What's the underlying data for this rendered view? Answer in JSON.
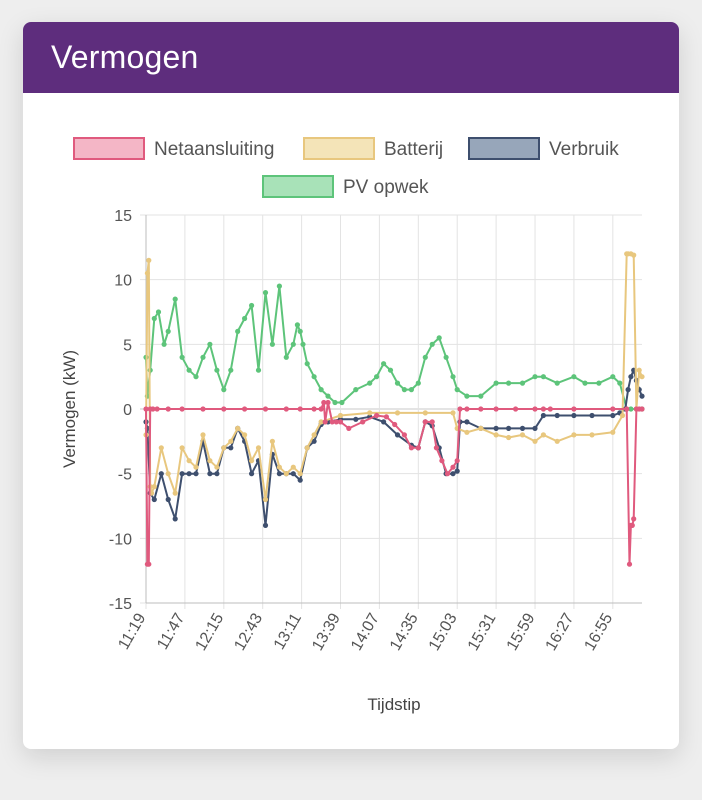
{
  "card": {
    "title": "Vermogen"
  },
  "chart_data": {
    "type": "line",
    "xlabel": "Tijdstip",
    "ylabel": "Vermogen (kW)",
    "ylim": [
      -15,
      15
    ],
    "yticks": [
      15,
      10,
      5,
      0,
      -5,
      -10,
      -15
    ],
    "xlim": [
      "11:19",
      "17:16"
    ],
    "xticks": [
      "11:19",
      "11:47",
      "12:15",
      "12:43",
      "13:11",
      "13:39",
      "14:07",
      "14:35",
      "15:03",
      "15:31",
      "15:59",
      "16:27",
      "16:55"
    ],
    "grid": true,
    "legend_position": "top",
    "series": [
      {
        "name": "Netaansluiting",
        "color": "#e05a7e",
        "fill": "#f4b6c6",
        "x": [
          "11:19",
          "11:20",
          "11:21",
          "11:22",
          "11:24",
          "11:27",
          "11:35",
          "11:45",
          "12:00",
          "12:15",
          "12:30",
          "12:45",
          "13:00",
          "13:10",
          "13:20",
          "13:25",
          "13:27",
          "13:28",
          "13:30",
          "13:33",
          "13:36",
          "13:39",
          "13:45",
          "13:55",
          "14:05",
          "14:12",
          "14:18",
          "14:25",
          "14:30",
          "14:35",
          "14:40",
          "14:45",
          "14:48",
          "14:52",
          "14:56",
          "15:00",
          "15:03",
          "15:05",
          "15:10",
          "15:20",
          "15:31",
          "15:45",
          "15:59",
          "16:05",
          "16:10",
          "16:27",
          "16:55",
          "17:05",
          "17:07",
          "17:08",
          "17:09",
          "17:10",
          "17:12",
          "17:14",
          "17:16"
        ],
        "values": [
          0,
          -12,
          -12,
          0,
          0,
          0,
          0,
          0,
          0,
          0,
          0,
          0,
          0,
          0,
          0,
          0,
          0.5,
          -1,
          0.5,
          -1,
          -1,
          -1,
          -1.5,
          -1,
          -0.5,
          -0.6,
          -1.2,
          -2,
          -3,
          -3,
          -1,
          -1,
          -3,
          -4,
          -5,
          -4.5,
          -4,
          0,
          0,
          0,
          0,
          0,
          0,
          0,
          0,
          0,
          0,
          0,
          -12,
          -9,
          -9,
          -8.5,
          0,
          0,
          0
        ]
      },
      {
        "name": "Batterij",
        "color": "#e8c77e",
        "fill": "#f4e4b8",
        "x": [
          "11:19",
          "11:20",
          "11:21",
          "11:22",
          "11:23",
          "11:25",
          "11:30",
          "11:35",
          "11:40",
          "11:45",
          "11:50",
          "11:55",
          "12:00",
          "12:05",
          "12:10",
          "12:15",
          "12:20",
          "12:25",
          "12:30",
          "12:35",
          "12:40",
          "12:45",
          "12:50",
          "12:55",
          "13:00",
          "13:05",
          "13:10",
          "13:15",
          "13:20",
          "13:25",
          "13:39",
          "14:00",
          "14:20",
          "14:40",
          "15:00",
          "15:03",
          "15:10",
          "15:20",
          "15:31",
          "15:40",
          "15:50",
          "15:59",
          "16:05",
          "16:15",
          "16:27",
          "16:40",
          "16:55",
          "17:02",
          "17:05",
          "17:06",
          "17:08",
          "17:10",
          "17:12",
          "17:14",
          "17:16"
        ],
        "values": [
          -2,
          10.5,
          11.5,
          -6,
          -6.5,
          -6,
          -3,
          -5,
          -6.5,
          -3,
          -4,
          -4.5,
          -2,
          -4,
          -4.5,
          -3,
          -2.5,
          -1.5,
          -2,
          -4,
          -3,
          -7,
          -2.5,
          -4.5,
          -5,
          -4.5,
          -5,
          -3,
          -2,
          -1,
          -0.5,
          -0.3,
          -0.3,
          -0.3,
          -0.3,
          -1.5,
          -1.8,
          -1.5,
          -2,
          -2.2,
          -2,
          -2.5,
          -2,
          -2.5,
          -2,
          -2,
          -1.8,
          -0.5,
          12,
          12,
          12,
          11.9,
          0,
          3,
          2.5
        ]
      },
      {
        "name": "Verbruik",
        "color": "#3e4f6e",
        "fill": "#97a6ba",
        "x": [
          "11:19",
          "11:20",
          "11:22",
          "11:25",
          "11:30",
          "11:35",
          "11:40",
          "11:45",
          "11:50",
          "11:55",
          "12:00",
          "12:05",
          "12:10",
          "12:15",
          "12:20",
          "12:25",
          "12:30",
          "12:35",
          "12:40",
          "12:45",
          "12:50",
          "12:55",
          "13:00",
          "13:05",
          "13:10",
          "13:15",
          "13:20",
          "13:25",
          "13:30",
          "13:39",
          "13:50",
          "14:00",
          "14:10",
          "14:20",
          "14:30",
          "14:35",
          "14:40",
          "14:45",
          "14:50",
          "14:55",
          "15:00",
          "15:03",
          "15:05",
          "15:10",
          "15:20",
          "15:31",
          "15:40",
          "15:50",
          "15:59",
          "16:05",
          "16:15",
          "16:27",
          "16:40",
          "16:55",
          "17:00",
          "17:04",
          "17:06",
          "17:08",
          "17:10",
          "17:12",
          "17:14",
          "17:16"
        ],
        "values": [
          -1,
          -1.5,
          -6.5,
          -7,
          -5,
          -7,
          -8.5,
          -5,
          -5,
          -5,
          -2.5,
          -5,
          -5,
          -3,
          -3,
          -1.5,
          -2.5,
          -5,
          -4,
          -9,
          -3.5,
          -5,
          -5,
          -5,
          -5.5,
          -3,
          -2.5,
          -1.2,
          -1,
          -0.8,
          -0.8,
          -0.6,
          -1,
          -2,
          -2.8,
          -3,
          -1,
          -1.3,
          -3,
          -5,
          -5,
          -4.8,
          -1,
          -1,
          -1.5,
          -1.5,
          -1.5,
          -1.5,
          -1.5,
          -0.5,
          -0.5,
          -0.5,
          -0.5,
          -0.5,
          -0.3,
          0,
          1.5,
          2.5,
          3,
          2.2,
          1.5,
          1
        ]
      },
      {
        "name": "PV opwek",
        "color": "#5dc47a",
        "fill": "#a8e2b8",
        "x": [
          "11:19",
          "11:20",
          "11:22",
          "11:25",
          "11:28",
          "11:32",
          "11:35",
          "11:40",
          "11:45",
          "11:50",
          "11:55",
          "12:00",
          "12:05",
          "12:10",
          "12:15",
          "12:20",
          "12:25",
          "12:30",
          "12:35",
          "12:40",
          "12:45",
          "12:50",
          "12:55",
          "13:00",
          "13:05",
          "13:08",
          "13:10",
          "13:12",
          "13:15",
          "13:20",
          "13:25",
          "13:30",
          "13:35",
          "13:40",
          "13:50",
          "14:00",
          "14:05",
          "14:10",
          "14:15",
          "14:20",
          "14:25",
          "14:30",
          "14:35",
          "14:40",
          "14:45",
          "14:50",
          "14:55",
          "15:00",
          "15:03",
          "15:10",
          "15:20",
          "15:31",
          "15:40",
          "15:50",
          "15:59",
          "16:05",
          "16:15",
          "16:27",
          "16:35",
          "16:45",
          "16:55",
          "17:00",
          "17:05",
          "17:08",
          "17:12",
          "17:16"
        ],
        "values": [
          4,
          1,
          3,
          7,
          7.5,
          5,
          6,
          8.5,
          4,
          3,
          2.5,
          4,
          5,
          3,
          1.5,
          3,
          6,
          7,
          8,
          3,
          9,
          5,
          9.5,
          4,
          5,
          6.5,
          6,
          5,
          3.5,
          2.5,
          1.5,
          1,
          0.5,
          0.5,
          1.5,
          2,
          2.5,
          3.5,
          3,
          2,
          1.5,
          1.5,
          2,
          4,
          5,
          5.5,
          4,
          2.5,
          1.5,
          1,
          1,
          2,
          2,
          2,
          2.5,
          2.5,
          2,
          2.5,
          2,
          2,
          2.5,
          2,
          0,
          0,
          0,
          0
        ]
      }
    ]
  }
}
